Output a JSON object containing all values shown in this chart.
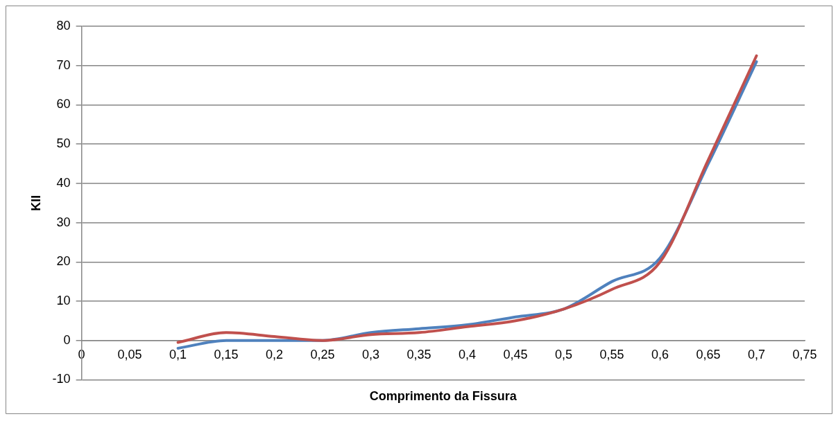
{
  "chart_data": {
    "type": "line",
    "xlabel": "Comprimento da Fissura",
    "ylabel": "KII",
    "x": [
      0.1,
      0.15,
      0.2,
      0.25,
      0.3,
      0.35,
      0.4,
      0.45,
      0.5,
      0.55,
      0.6,
      0.65,
      0.7
    ],
    "series": [
      {
        "color": "#c0504d",
        "values": [
          -0.5,
          2,
          1,
          0,
          1.5,
          2,
          3.5,
          5,
          8,
          13,
          20,
          46,
          72.5
        ]
      },
      {
        "color": "#4f81bd",
        "values": [
          -2,
          0,
          0,
          0,
          2,
          3,
          4,
          6,
          8,
          15,
          21,
          45,
          71
        ]
      }
    ],
    "xlim": [
      0,
      0.75
    ],
    "xticks": [
      0,
      {
        "value": 0.05,
        "label": "0,05"
      },
      {
        "value": 0.1,
        "label": "0,1"
      },
      {
        "value": 0.15,
        "label": "0,15"
      },
      {
        "value": 0.2,
        "label": "0,2"
      },
      {
        "value": 0.25,
        "label": "0,25"
      },
      {
        "value": 0.3,
        "label": "0,3"
      },
      {
        "value": 0.35,
        "label": "0,35"
      },
      {
        "value": 0.4,
        "label": "0,4"
      },
      {
        "value": 0.45,
        "label": "0,45"
      },
      {
        "value": 0.5,
        "label": "0,5"
      },
      {
        "value": 0.55,
        "label": "0,55"
      },
      {
        "value": 0.6,
        "label": "0,6"
      },
      {
        "value": 0.65,
        "label": "0,65"
      },
      {
        "value": 0.7,
        "label": "0,7"
      },
      {
        "value": 0.75,
        "label": "0,75"
      }
    ],
    "ylim": [
      -10,
      80
    ],
    "yticks": [
      -10,
      0,
      10,
      20,
      30,
      40,
      50,
      60,
      70,
      80
    ],
    "grid": "y",
    "marker": "none",
    "line_style": "solid"
  }
}
